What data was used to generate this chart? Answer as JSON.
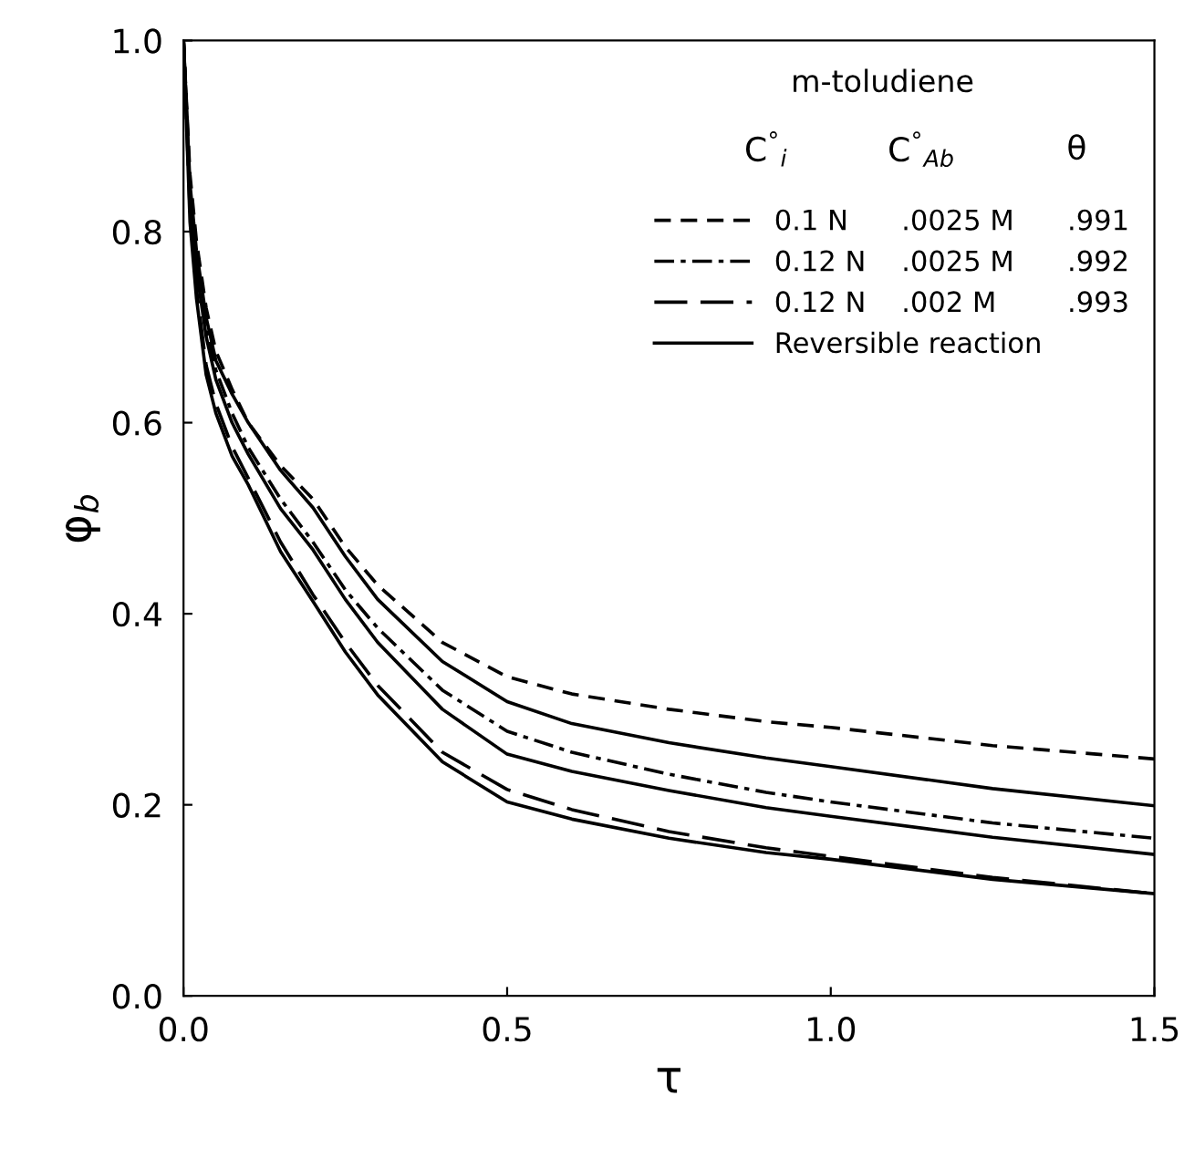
{
  "chart_data": {
    "type": "line",
    "xlabel": "τ",
    "ylabel": "φ$_{b}$",
    "legend_title": "m-toludiene",
    "annotations": [
      "C$^{°}$$_{i}$",
      "C$^{°}$$_{Ab}$",
      "θ"
    ],
    "x": [
      0,
      0.01,
      0.02,
      0.035,
      0.05,
      0.075,
      0.1,
      0.15,
      0.2,
      0.25,
      0.3,
      0.4,
      0.5,
      0.6,
      0.75,
      0.9,
      1.0,
      1.25,
      1.5
    ],
    "series": [
      {
        "name": "0.1 N      .0025 M      .991",
        "color": "#000000",
        "line_style": "dashed",
        "values": [
          1.0,
          0.86,
          0.79,
          0.72,
          0.675,
          0.635,
          0.6,
          0.555,
          0.52,
          0.47,
          0.43,
          0.37,
          0.334,
          0.316,
          0.3,
          0.287,
          0.281,
          0.262,
          0.248
        ]
      },
      {
        "name": "0.12 N    .0025 M      .992",
        "color": "#000000",
        "line_style": "dashdot",
        "values": [
          1.0,
          0.84,
          0.77,
          0.7,
          0.655,
          0.61,
          0.574,
          0.52,
          0.475,
          0.425,
          0.385,
          0.32,
          0.277,
          0.255,
          0.232,
          0.213,
          0.203,
          0.181,
          0.165
        ]
      },
      {
        "name": "0.12 N    .002 M        .993",
        "color": "#000000",
        "line_style": "longdash",
        "values": [
          1.0,
          0.82,
          0.74,
          0.66,
          0.62,
          0.575,
          0.542,
          0.475,
          0.42,
          0.37,
          0.325,
          0.255,
          0.216,
          0.195,
          0.172,
          0.155,
          0.146,
          0.124,
          0.107
        ]
      },
      {
        "name": "Reversible reaction",
        "color": "#000000",
        "line_style": "solid",
        "values": [
          1.0,
          0.85,
          0.78,
          0.71,
          0.665,
          0.63,
          0.6,
          0.55,
          0.511,
          0.46,
          0.415,
          0.35,
          0.308,
          0.285,
          0.265,
          0.249,
          0.24,
          0.217,
          0.199
        ]
      },
      {
        "color": "#000000",
        "line_style": "solid",
        "values": [
          1.0,
          0.84,
          0.76,
          0.69,
          0.645,
          0.6,
          0.567,
          0.51,
          0.467,
          0.415,
          0.37,
          0.3,
          0.253,
          0.235,
          0.215,
          0.197,
          0.188,
          0.166,
          0.148
        ]
      },
      {
        "color": "#000000",
        "line_style": "solid",
        "values": [
          1.0,
          0.81,
          0.73,
          0.65,
          0.61,
          0.565,
          0.535,
          0.465,
          0.413,
          0.36,
          0.315,
          0.245,
          0.203,
          0.185,
          0.165,
          0.15,
          0.143,
          0.122,
          0.107
        ]
      }
    ],
    "xlim": [
      0,
      1.5
    ],
    "ylim": [
      0,
      1.0
    ],
    "xticks": [
      {
        "value": 0,
        "label": "0.0"
      },
      0.5,
      {
        "value": 1.0,
        "label": "1.0"
      },
      1.5
    ],
    "yticks": [
      {
        "value": 0,
        "label": "0.0"
      },
      0.2,
      0.4,
      0.6,
      0.8,
      {
        "value": 1.0,
        "label": "1.0"
      }
    ],
    "grid": false,
    "legend": "top right",
    "marker": "none"
  }
}
